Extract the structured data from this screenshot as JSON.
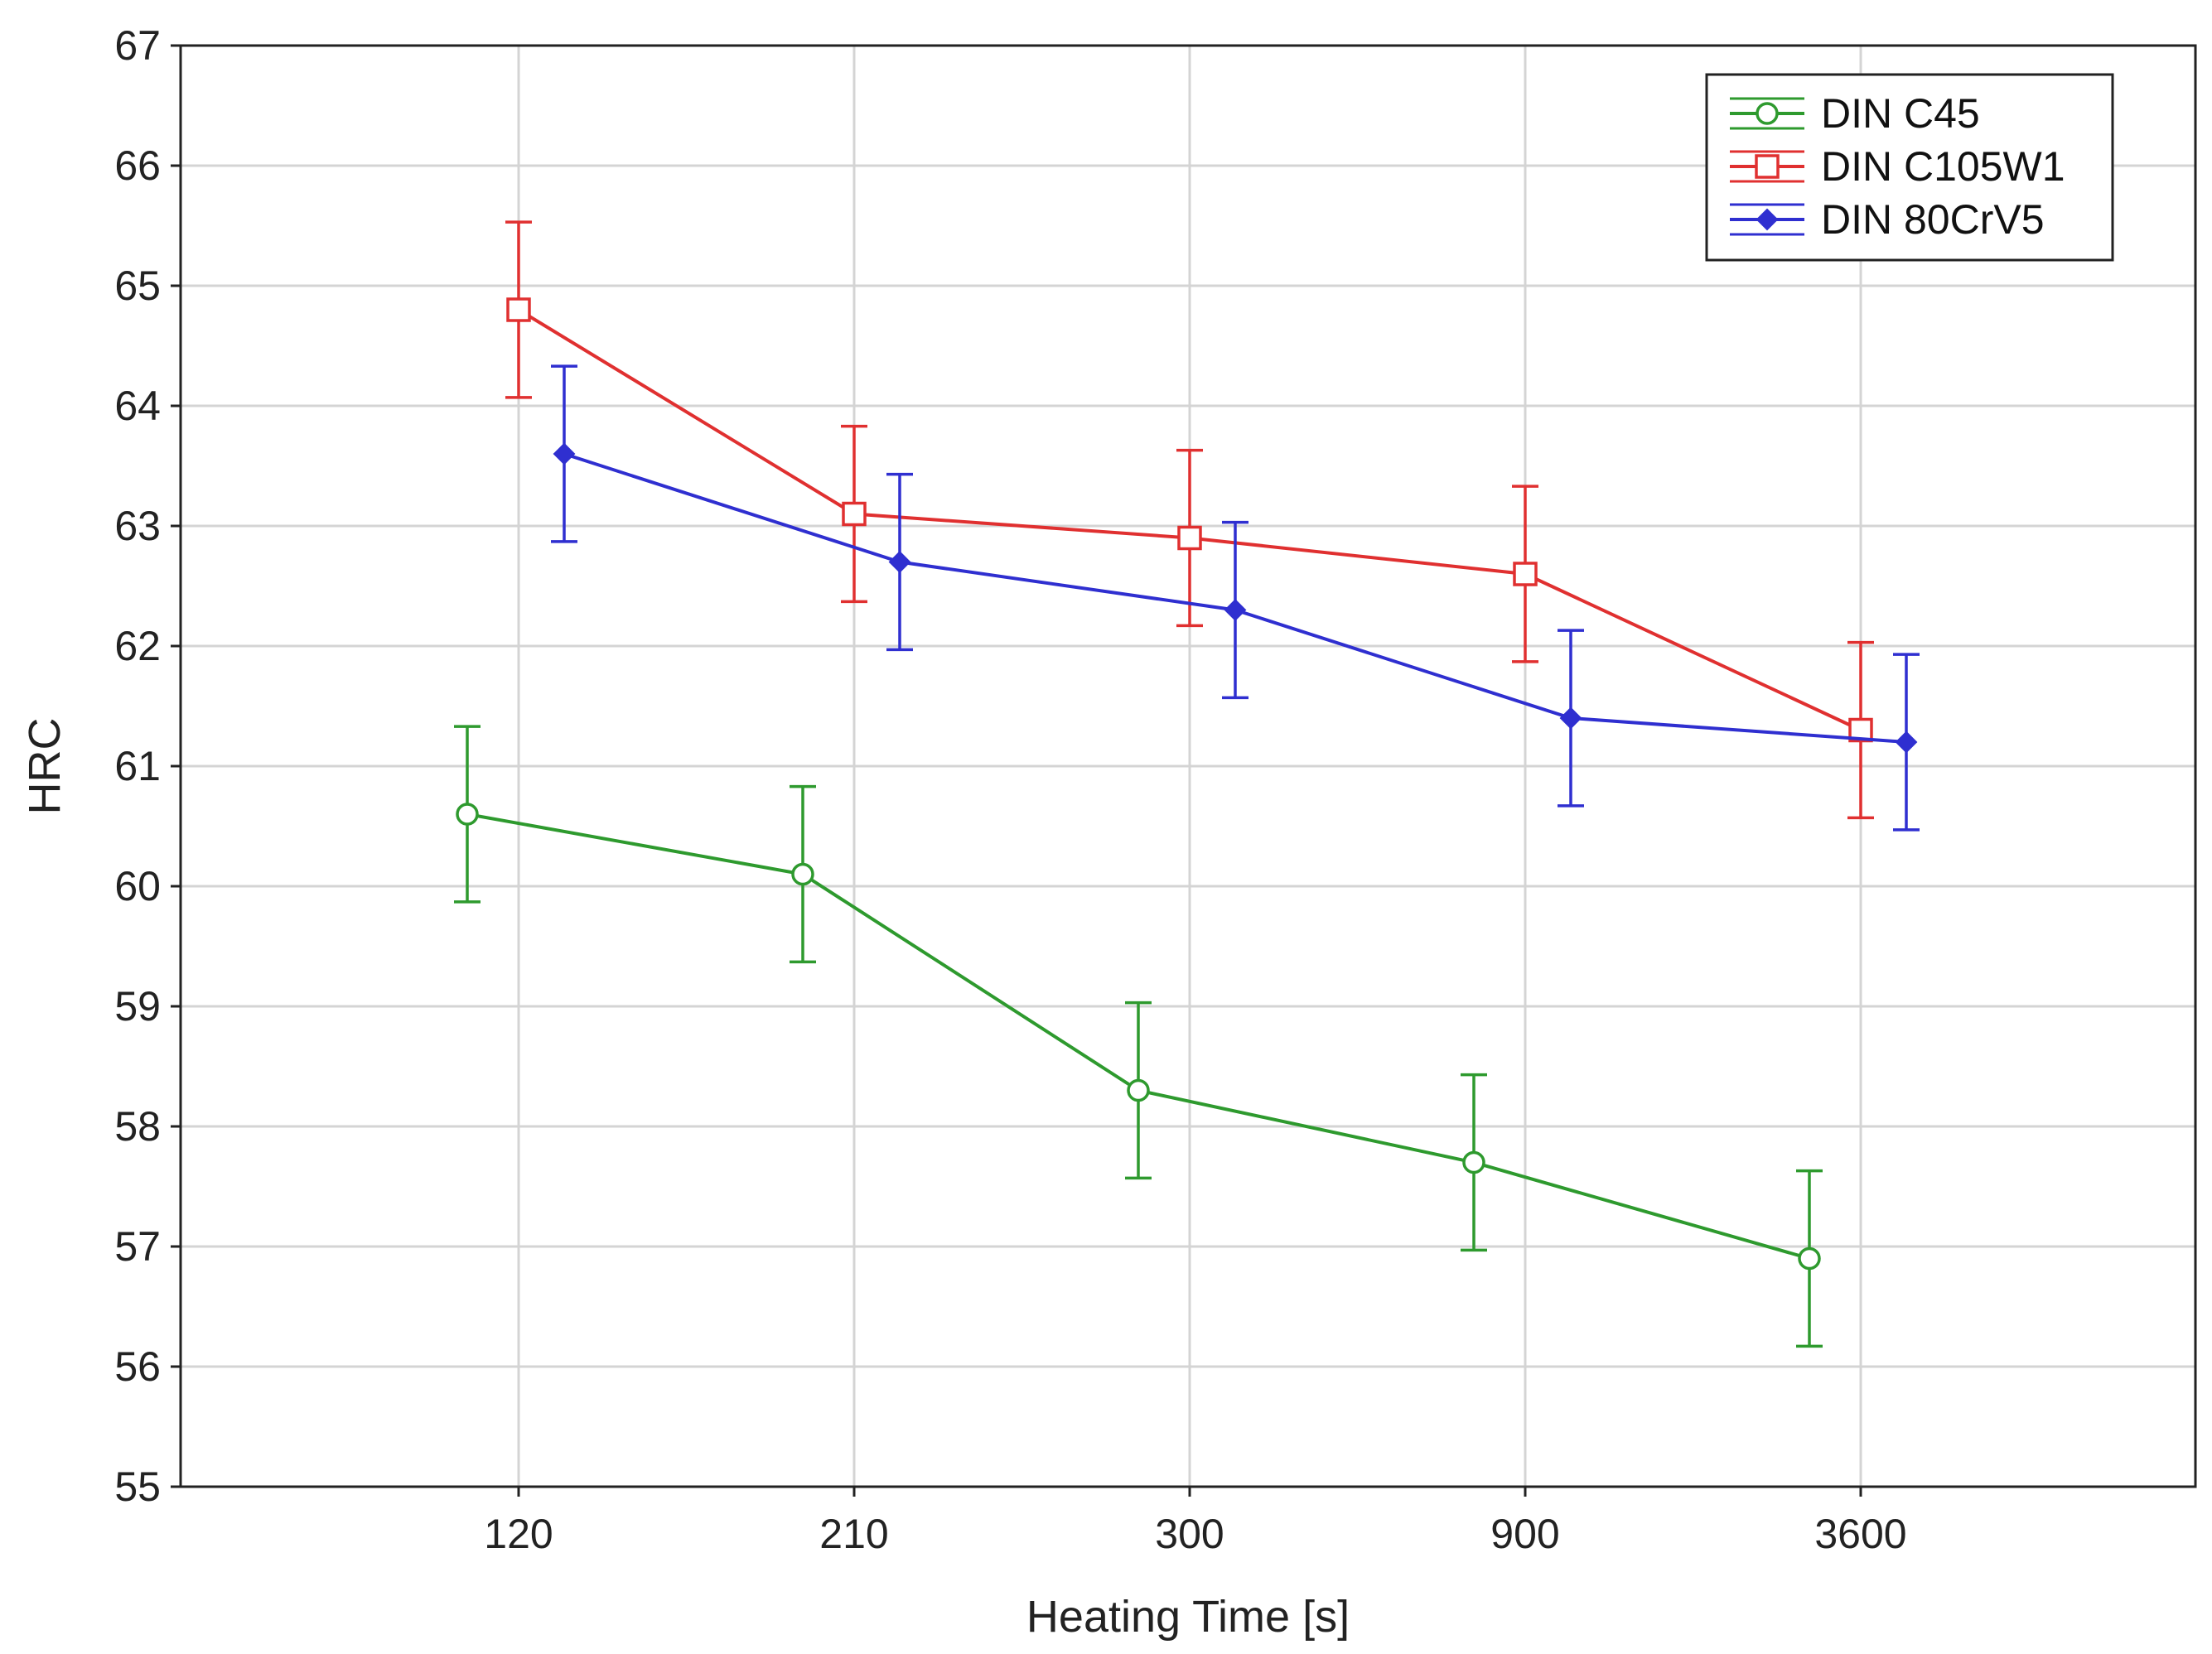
{
  "chart_data": {
    "type": "line",
    "title": "",
    "xlabel": "Heating Time [s]",
    "ylabel": "HRC",
    "categories": [
      "120",
      "210",
      "300",
      "900",
      "3600"
    ],
    "ylim": [
      55,
      67
    ],
    "yticks": [
      "55",
      "56",
      "57",
      "58",
      "59",
      "60",
      "61",
      "62",
      "63",
      "64",
      "65",
      "66",
      "67"
    ],
    "grid": true,
    "legend_position": "top-right",
    "series": [
      {
        "name": "DIN C45",
        "color": "#2e9a2e",
        "marker": "circle",
        "offset": "left",
        "values": [
          60.6,
          60.1,
          58.3,
          57.7,
          56.9
        ],
        "err_low": [
          59.87,
          59.37,
          57.57,
          56.97,
          56.17
        ],
        "err_high": [
          61.33,
          60.83,
          59.03,
          58.43,
          57.63
        ]
      },
      {
        "name": "DIN C105W1",
        "color": "#e03030",
        "marker": "square",
        "offset": "center",
        "values": [
          64.8,
          63.1,
          62.9,
          62.6,
          61.3
        ],
        "err_low": [
          64.07,
          62.37,
          62.17,
          61.87,
          60.57
        ],
        "err_high": [
          65.53,
          63.83,
          63.63,
          63.33,
          62.03
        ]
      },
      {
        "name": "DIN 80CrV5",
        "color": "#2f2fd0",
        "marker": "diamond",
        "offset": "right",
        "values": [
          63.6,
          62.7,
          62.3,
          61.4,
          61.2
        ],
        "err_low": [
          62.87,
          61.97,
          61.57,
          60.67,
          60.47
        ],
        "err_high": [
          64.33,
          63.43,
          63.03,
          62.13,
          61.93
        ]
      }
    ]
  }
}
